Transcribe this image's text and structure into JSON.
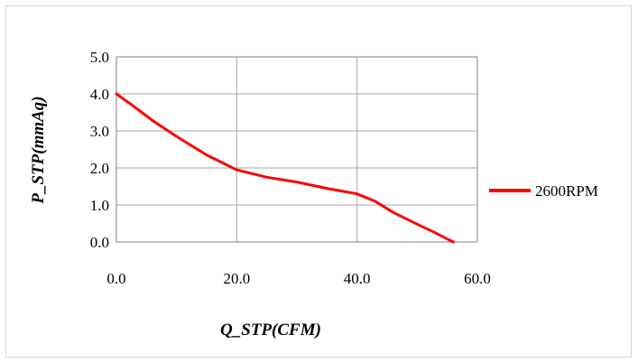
{
  "chart_data": {
    "type": "line",
    "title": "",
    "xlabel": "Q_STP(CFM)",
    "ylabel": "P_STP(mmAq)",
    "xlim": [
      0,
      60
    ],
    "ylim": [
      0,
      5
    ],
    "x_ticks": [
      "0.0",
      "20.0",
      "40.0",
      "60.0"
    ],
    "y_ticks": [
      "0.0",
      "1.0",
      "2.0",
      "3.0",
      "4.0",
      "5.0"
    ],
    "grid": true,
    "legend_position": "right",
    "series": [
      {
        "name": "2600RPM",
        "color": "#ff0000",
        "x": [
          0,
          3,
          6,
          10,
          15,
          20,
          25,
          30,
          35,
          40,
          43,
          46,
          50,
          53,
          56
        ],
        "y": [
          4.0,
          3.65,
          3.28,
          2.85,
          2.35,
          1.95,
          1.75,
          1.62,
          1.45,
          1.3,
          1.1,
          0.8,
          0.48,
          0.25,
          0.0
        ]
      }
    ]
  }
}
